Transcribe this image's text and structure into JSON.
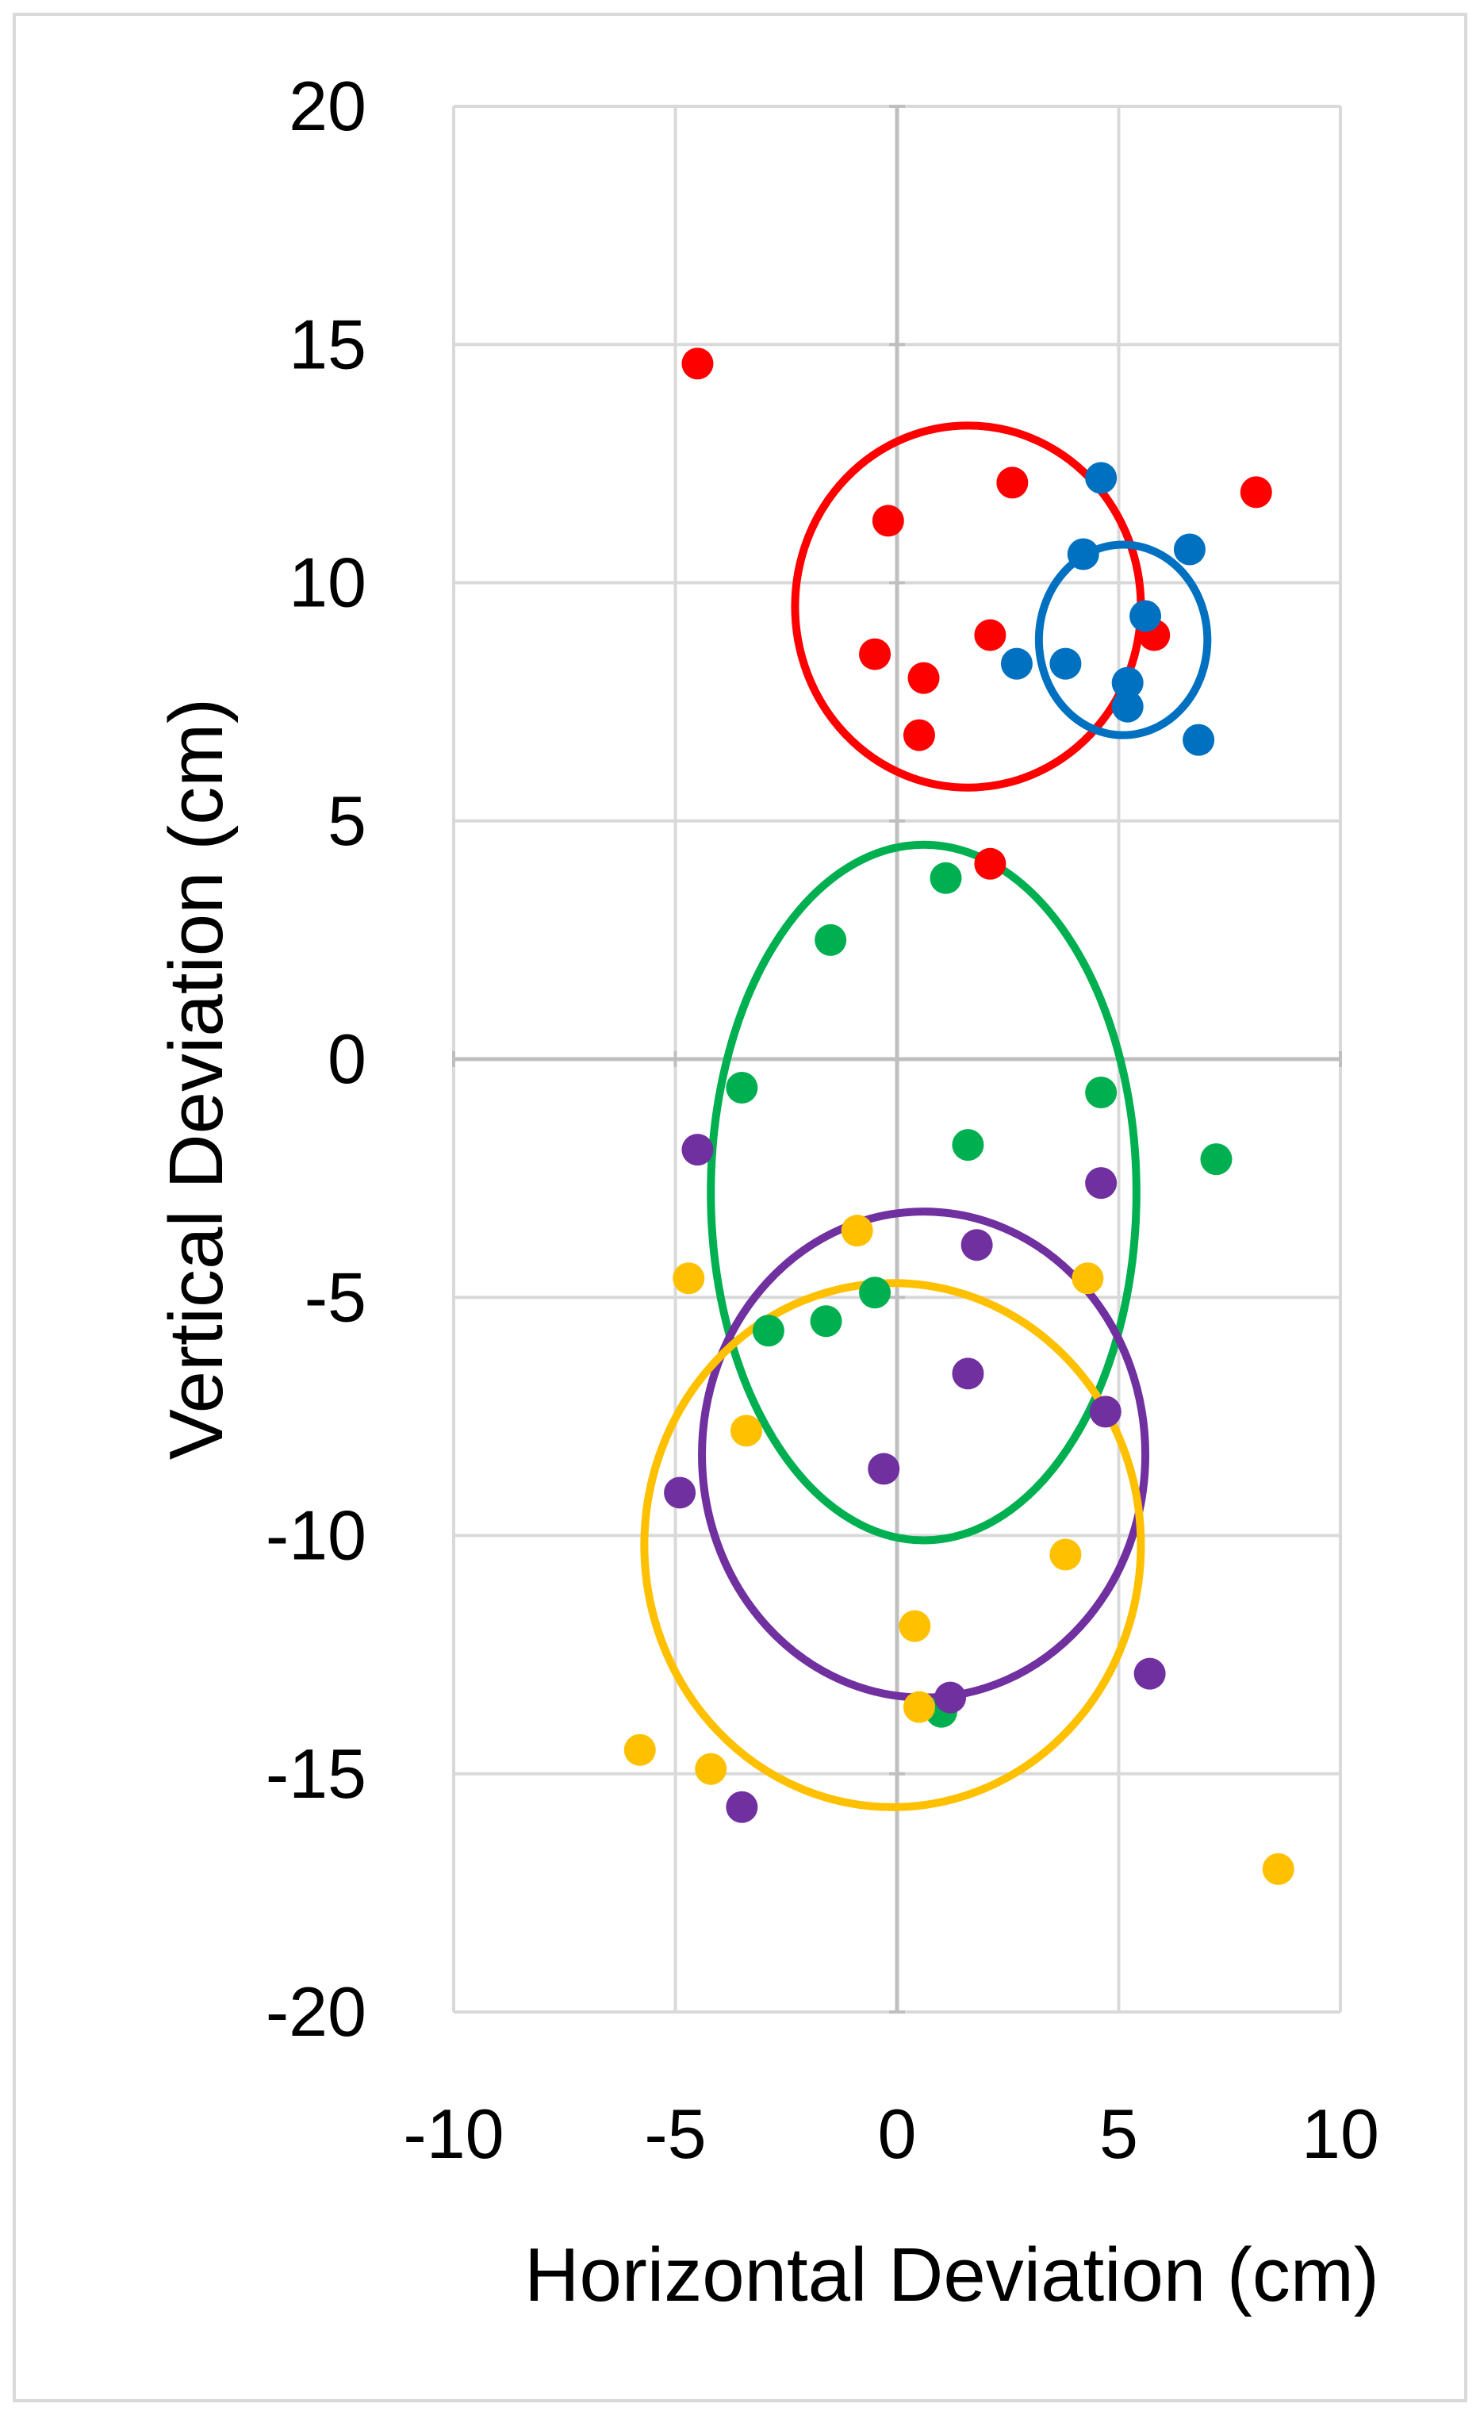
{
  "chart_data": {
    "type": "scatter",
    "title": "",
    "xlabel": "Horizontal Deviation (cm)",
    "ylabel": "Vertical Deviation (cm)",
    "xlim": [
      -10,
      10
    ],
    "ylim": [
      -20,
      20
    ],
    "x_ticks": [
      -10,
      -5,
      0,
      5,
      10
    ],
    "y_ticks": [
      20,
      15,
      10,
      5,
      0,
      -5,
      -10,
      -15,
      -20
    ],
    "x_tick_labels": [
      "-10",
      "-5",
      "0",
      "5",
      "10"
    ],
    "y_tick_labels": [
      "20",
      "15",
      "10",
      "5",
      "0",
      "-5",
      "-10",
      "-15",
      "-20"
    ],
    "grid": true,
    "legend": "none",
    "series": [
      {
        "name": "red",
        "color": "#FF0000",
        "points": [
          [
            -4.5,
            14.6
          ],
          [
            2.6,
            12.1
          ],
          [
            8.1,
            11.9
          ],
          [
            -0.2,
            11.3
          ],
          [
            2.1,
            8.9
          ],
          [
            5.8,
            8.9
          ],
          [
            -0.5,
            8.5
          ],
          [
            0.6,
            8.0
          ],
          [
            0.5,
            6.8
          ],
          [
            2.1,
            4.1
          ]
        ],
        "ellipse": {
          "cx": 1.6,
          "cy": 9.5,
          "rx": 3.9,
          "ry": 3.8
        }
      },
      {
        "name": "blue",
        "color": "#0070C0",
        "points": [
          [
            4.6,
            12.2
          ],
          [
            4.2,
            10.6
          ],
          [
            6.6,
            10.7
          ],
          [
            5.6,
            9.3
          ],
          [
            2.7,
            8.3
          ],
          [
            3.8,
            8.3
          ],
          [
            5.2,
            7.9
          ],
          [
            5.2,
            7.4
          ],
          [
            6.8,
            6.7
          ]
        ],
        "ellipse": {
          "cx": 5.1,
          "cy": 8.8,
          "rx": 1.9,
          "ry": 2.0
        }
      },
      {
        "name": "green",
        "color": "#00B050",
        "points": [
          [
            1.1,
            3.8
          ],
          [
            -1.5,
            2.5
          ],
          [
            -3.5,
            -0.6
          ],
          [
            4.6,
            -0.7
          ],
          [
            1.6,
            -1.8
          ],
          [
            7.2,
            -2.1
          ],
          [
            -0.5,
            -4.9
          ],
          [
            -1.6,
            -5.5
          ],
          [
            -2.9,
            -5.7
          ],
          [
            1.0,
            -13.7
          ]
        ],
        "ellipse": {
          "cx": 0.6,
          "cy": -2.8,
          "rx": 4.8,
          "ry": 7.3
        }
      },
      {
        "name": "purple",
        "color": "#7030A0",
        "points": [
          [
            -4.5,
            -1.9
          ],
          [
            4.6,
            -2.6
          ],
          [
            1.8,
            -3.9
          ],
          [
            1.6,
            -6.6
          ],
          [
            4.7,
            -7.4
          ],
          [
            -0.3,
            -8.6
          ],
          [
            -4.9,
            -9.1
          ],
          [
            5.7,
            -12.9
          ],
          [
            1.2,
            -13.4
          ],
          [
            -3.5,
            -15.7
          ]
        ],
        "ellipse": {
          "cx": 0.6,
          "cy": -8.3,
          "rx": 5.0,
          "ry": 5.1
        }
      },
      {
        "name": "yellow",
        "color": "#FFC000",
        "points": [
          [
            -0.9,
            -3.6
          ],
          [
            -4.7,
            -4.6
          ],
          [
            4.3,
            -4.6
          ],
          [
            -3.4,
            -7.8
          ],
          [
            3.8,
            -10.4
          ],
          [
            0.4,
            -11.9
          ],
          [
            0.5,
            -13.6
          ],
          [
            -5.8,
            -14.5
          ],
          [
            -4.2,
            -14.9
          ],
          [
            8.6,
            -17.0
          ]
        ],
        "ellipse": {
          "cx": -0.1,
          "cy": -10.2,
          "rx": 5.6,
          "ry": 5.5
        }
      }
    ]
  }
}
